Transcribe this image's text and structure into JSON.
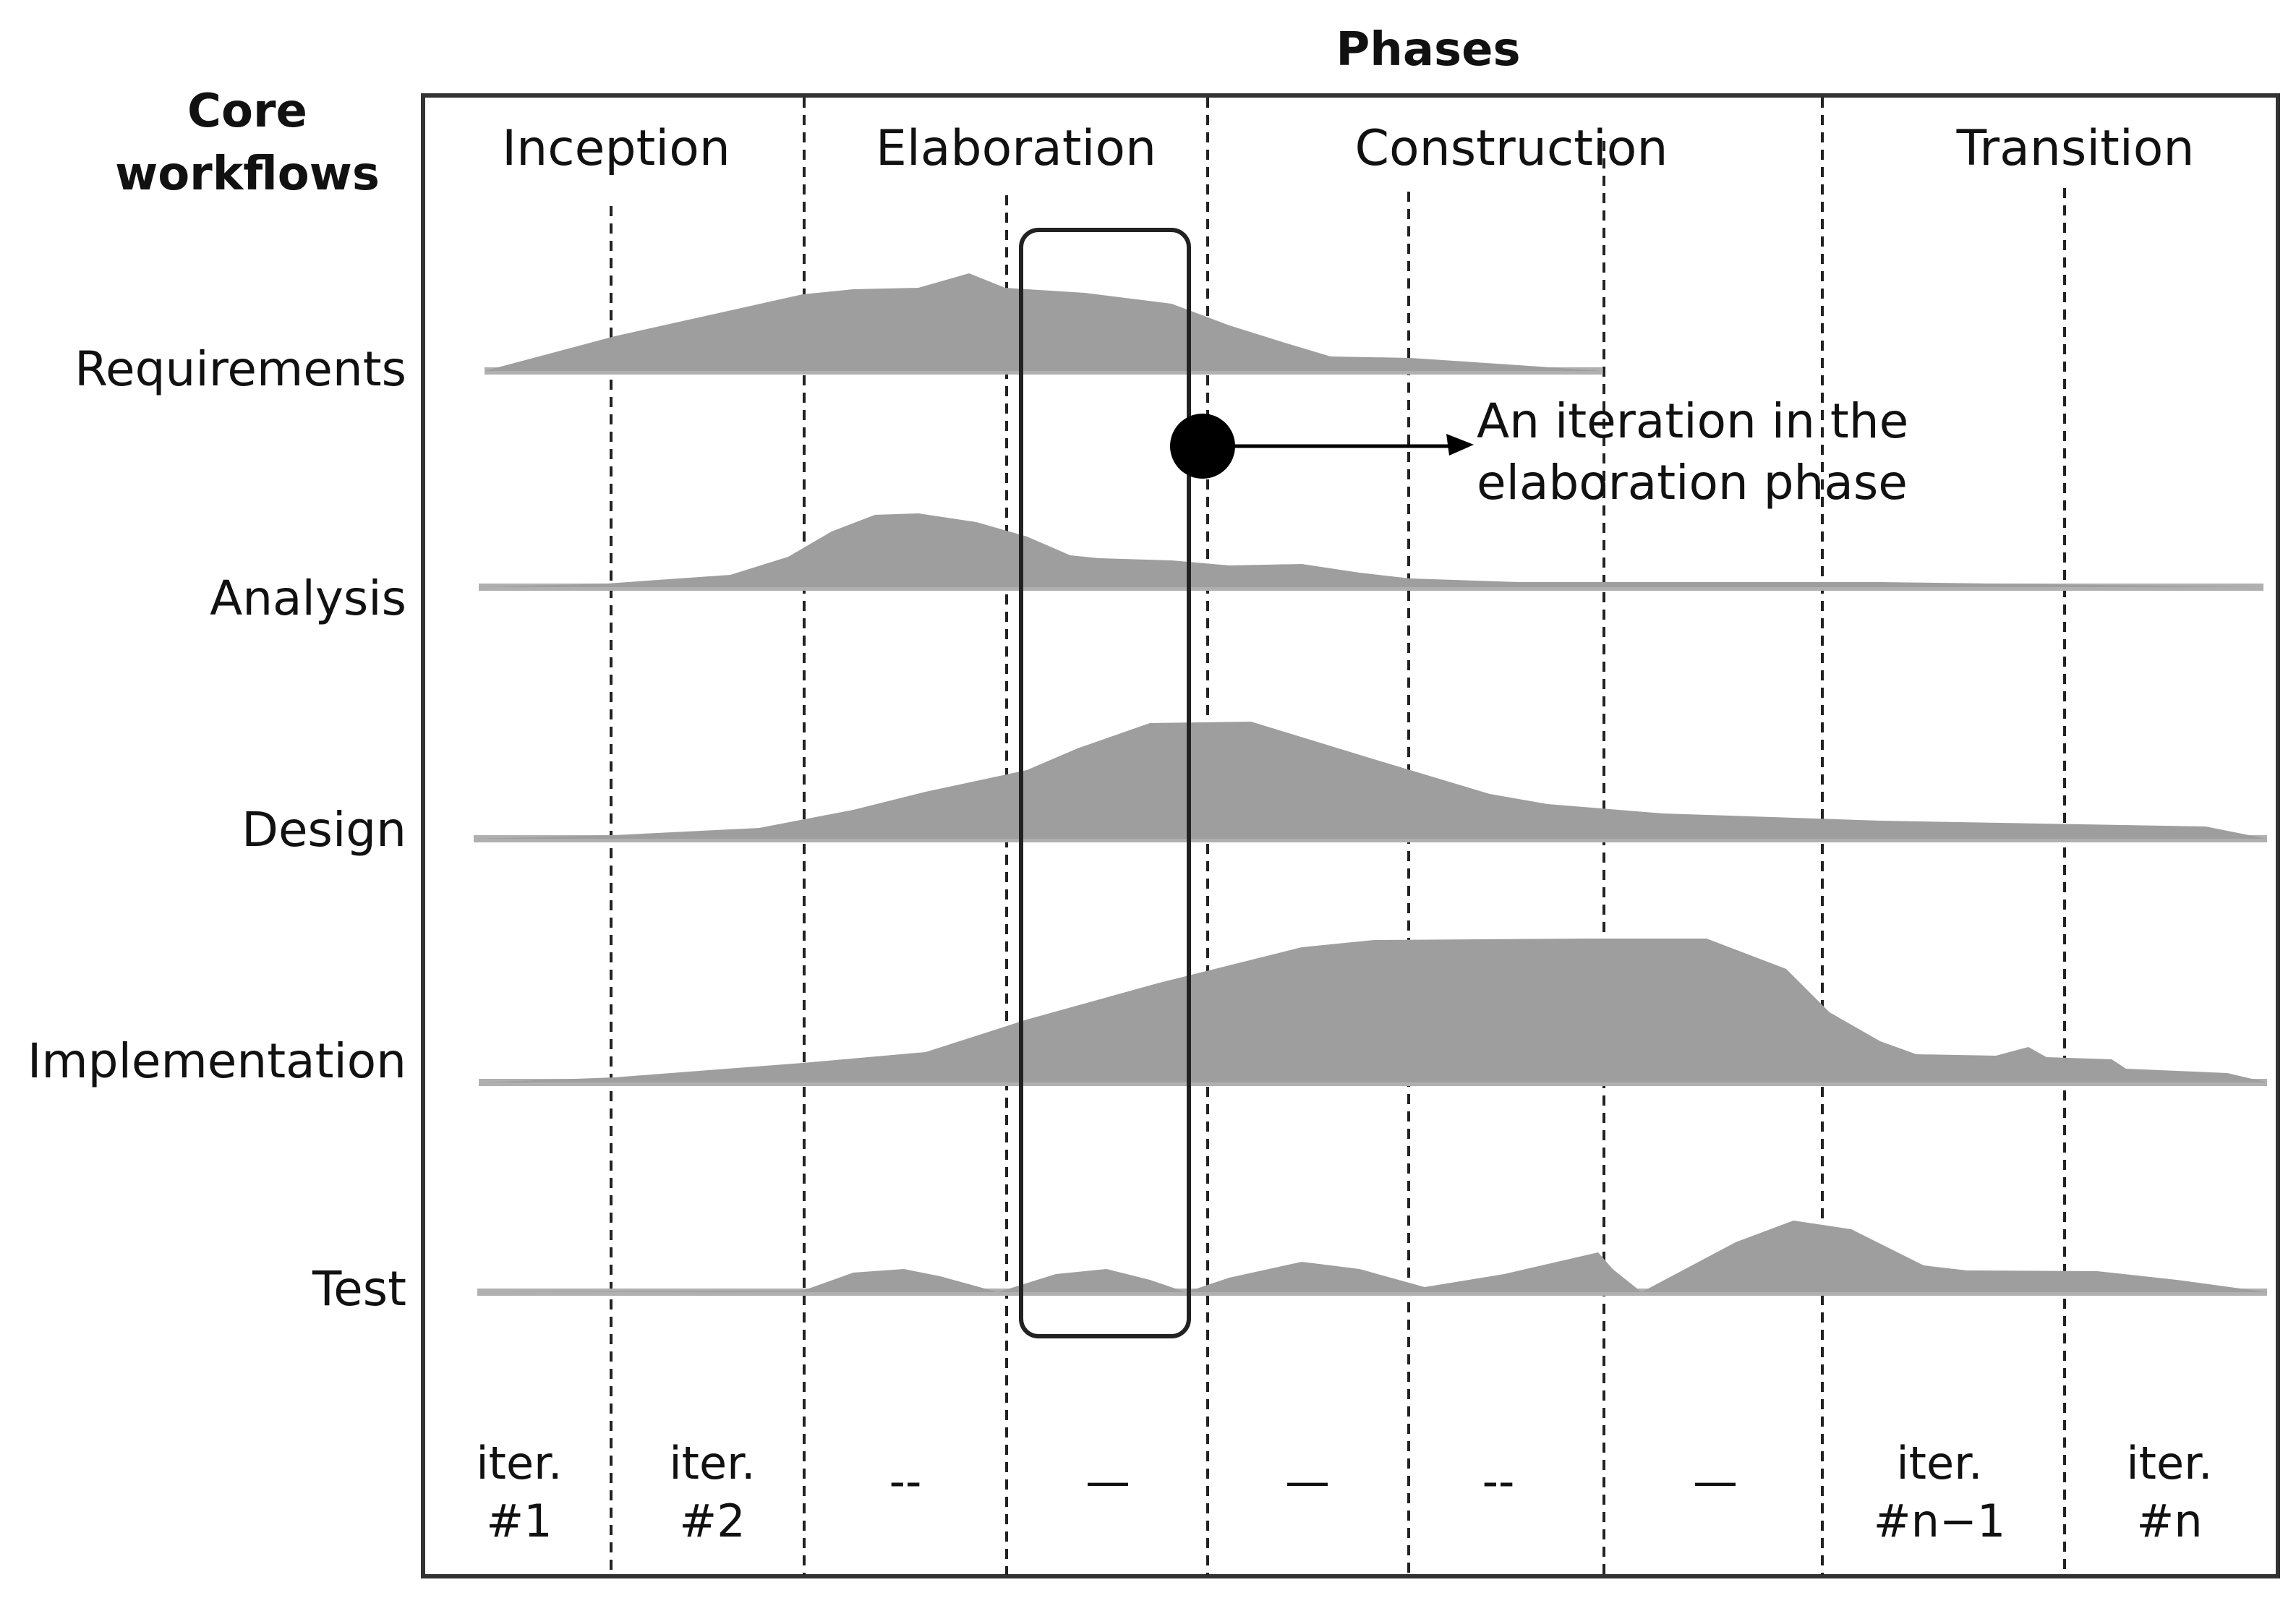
{
  "header": {
    "phases_title": "Phases",
    "core_workflows_line1": "Core",
    "core_workflows_line2": "workflows"
  },
  "phases": [
    "Inception",
    "Elaboration",
    "Construction",
    "Transition"
  ],
  "workflows": [
    "Requirements",
    "Analysis",
    "Design",
    "Implementation",
    "Test"
  ],
  "iterations": [
    {
      "line1": "iter.",
      "line2": "#1"
    },
    {
      "line1": "iter.",
      "line2": "#2"
    },
    {
      "line1": "--",
      "line2": ""
    },
    {
      "line1": "—",
      "line2": ""
    },
    {
      "line1": "—",
      "line2": ""
    },
    {
      "line1": "--",
      "line2": ""
    },
    {
      "line1": "—",
      "line2": ""
    },
    {
      "line1": "iter.",
      "line2": "#n−1"
    },
    {
      "line1": "iter.",
      "line2": "#n"
    }
  ],
  "annotation": {
    "line1": "An iteration in the",
    "line2": "elaboration phase"
  },
  "colors": {
    "area_fill": "#9e9e9e",
    "frame": "#333333",
    "lines": "#222222"
  }
}
